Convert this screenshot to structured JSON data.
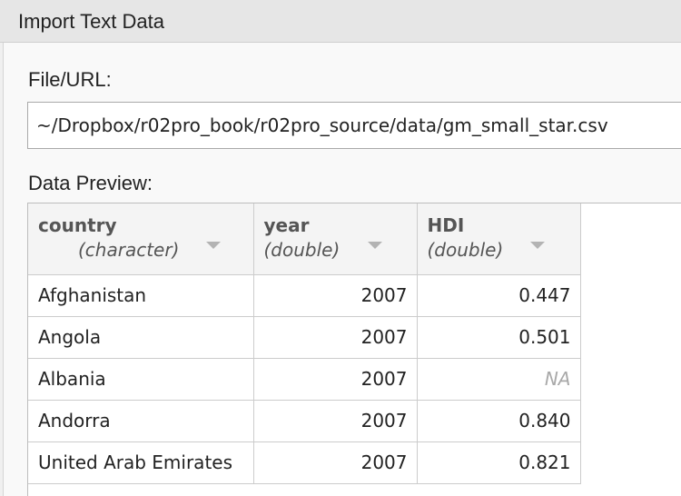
{
  "window": {
    "title": "Import Text Data"
  },
  "file": {
    "label": "File/URL:",
    "value": "~/Dropbox/r02pro_book/r02pro_source/data/gm_small_star.csv"
  },
  "preview": {
    "label": "Data Preview:",
    "columns": [
      {
        "name": "country",
        "type": "(character)"
      },
      {
        "name": "year",
        "type": "(double)"
      },
      {
        "name": "HDI",
        "type": "(double)"
      }
    ],
    "rows": [
      [
        "Afghanistan",
        "2007",
        "0.447"
      ],
      [
        "Angola",
        "2007",
        "0.501"
      ],
      [
        "Albania",
        "2007",
        "NA"
      ],
      [
        "Andorra",
        "2007",
        "0.840"
      ],
      [
        "United Arab Emirates",
        "2007",
        "0.821"
      ]
    ]
  },
  "colors": {
    "na_text": "#a9a9a9",
    "header_background": "#f4f4f4"
  }
}
